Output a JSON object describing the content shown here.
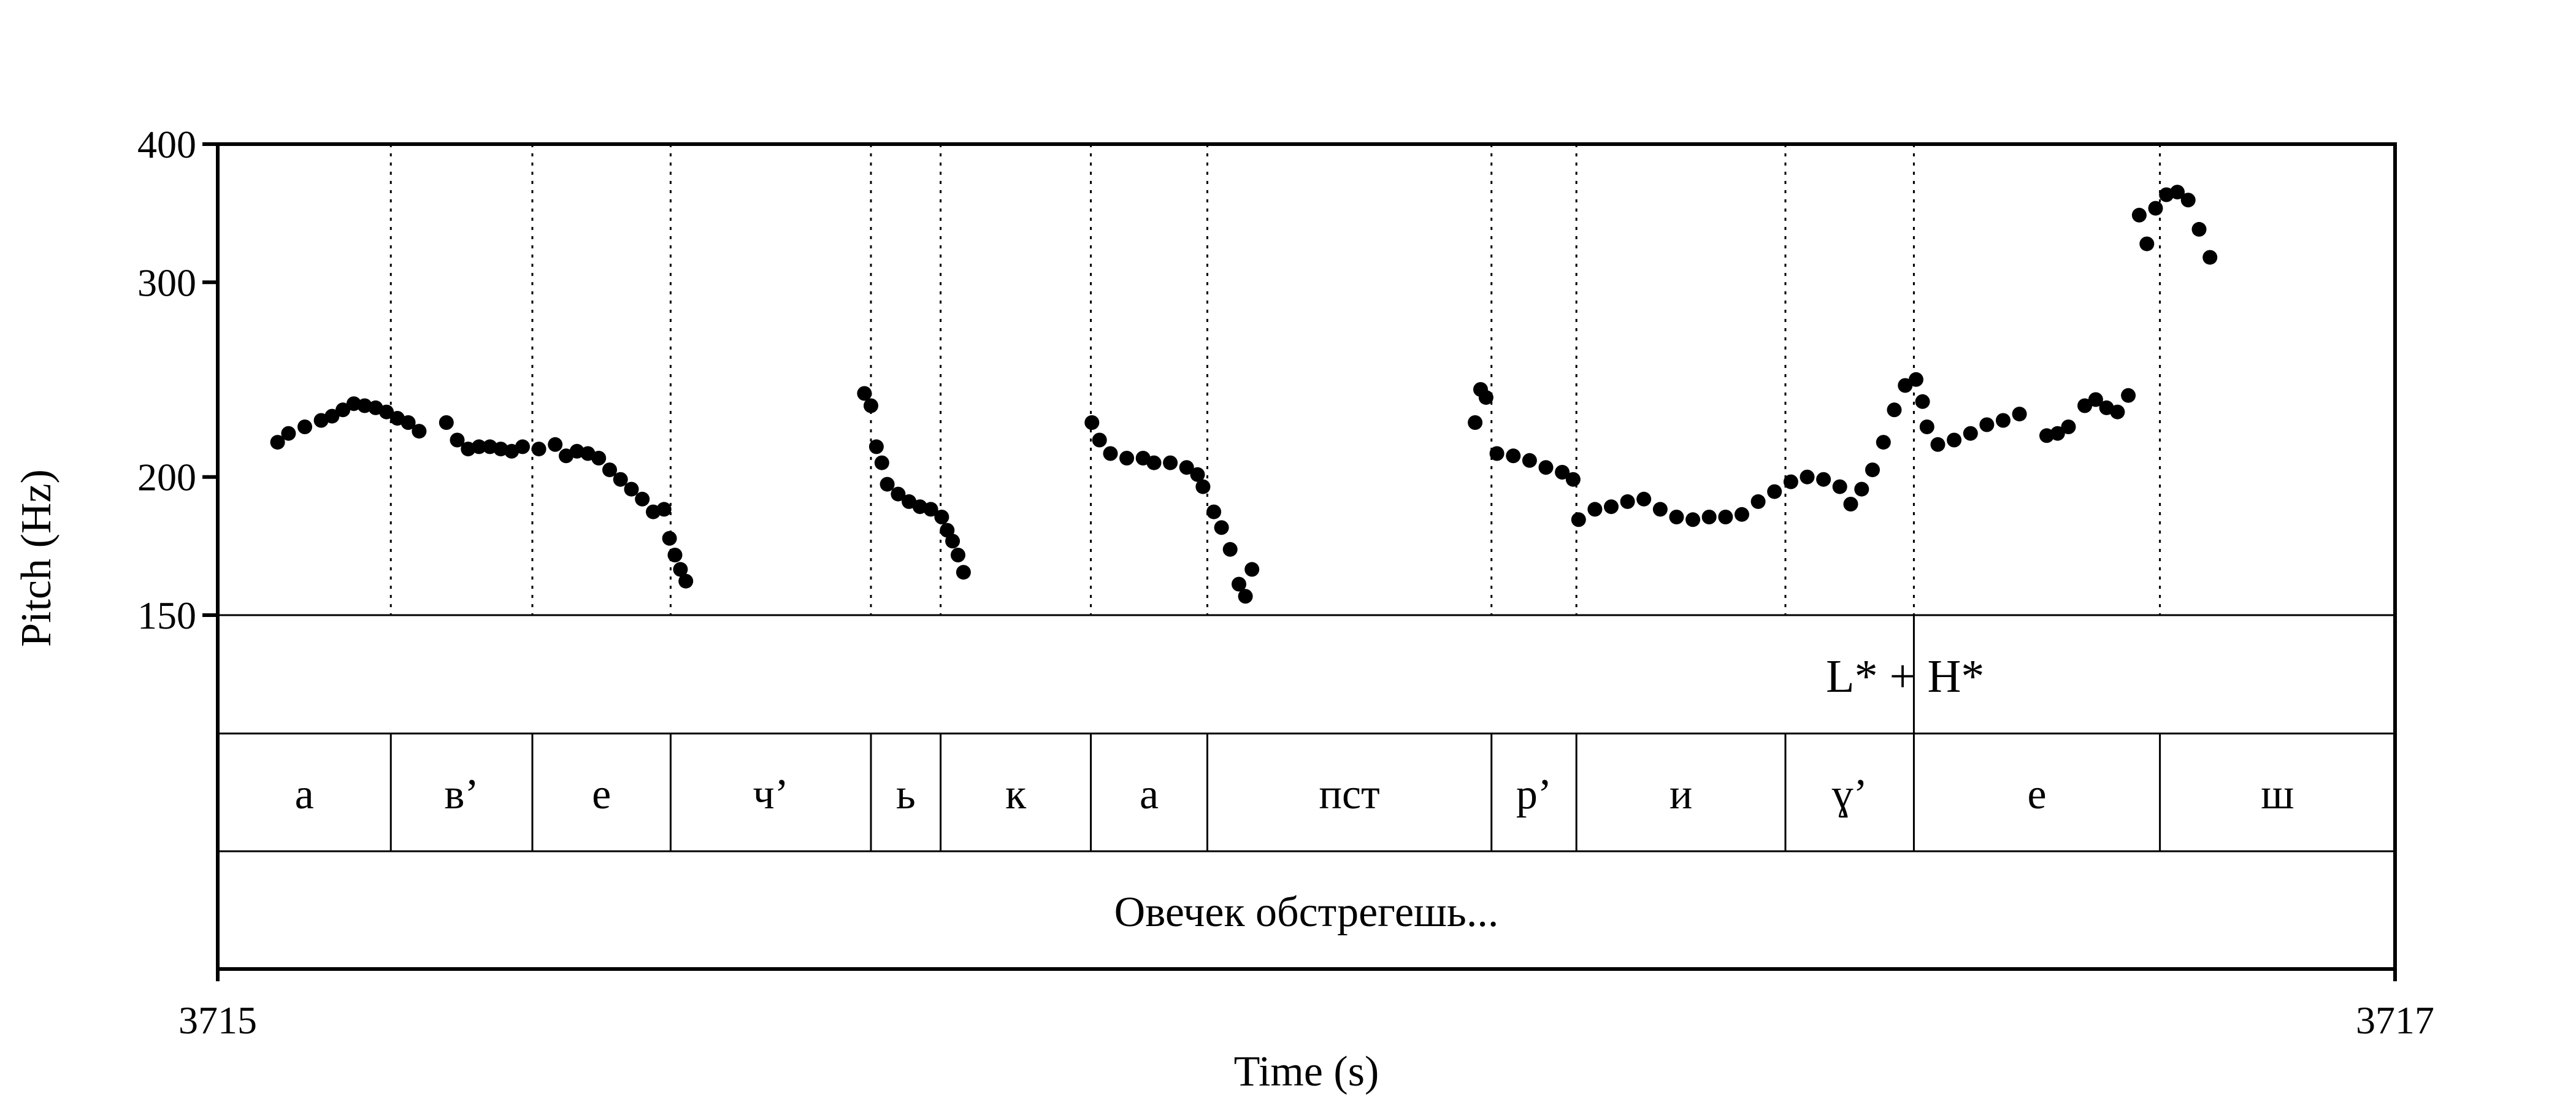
{
  "chart_data": {
    "type": "scatter",
    "xlabel": "Time (s)",
    "ylabel": "Pitch (Hz)",
    "xlim": [
      3715,
      3717
    ],
    "x_tick_labels": [
      "3715",
      "3717"
    ],
    "ylim": [
      150,
      400
    ],
    "y_scale": "log",
    "y_ticks": [
      400,
      300,
      200,
      150
    ],
    "y_tick_labels": [
      "400",
      "300",
      "200",
      "150"
    ],
    "grid": false,
    "segment_boundaries": [
      3715.159,
      3715.289,
      3715.416,
      3715.6,
      3715.664,
      3715.802,
      3715.909,
      3716.17,
      3716.248,
      3716.44,
      3716.558,
      3716.784
    ],
    "tone_tier": {
      "boundary": 3716.558,
      "label": "L* + H*",
      "label_time": 3716.55
    },
    "segments": [
      {
        "label": "a",
        "start": 3715.0,
        "end": 3715.159
      },
      {
        "label": "в’",
        "start": 3715.159,
        "end": 3715.289
      },
      {
        "label": "e",
        "start": 3715.289,
        "end": 3715.416
      },
      {
        "label": "ч’",
        "start": 3715.416,
        "end": 3715.6
      },
      {
        "label": "ь",
        "start": 3715.6,
        "end": 3715.664
      },
      {
        "label": "к",
        "start": 3715.664,
        "end": 3715.802
      },
      {
        "label": "a",
        "start": 3715.802,
        "end": 3715.909
      },
      {
        "label": "пст",
        "start": 3715.909,
        "end": 3716.17
      },
      {
        "label": "р’",
        "start": 3716.17,
        "end": 3716.248
      },
      {
        "label": "и",
        "start": 3716.248,
        "end": 3716.44
      },
      {
        "label": "ɣ’",
        "start": 3716.44,
        "end": 3716.558
      },
      {
        "label": "e",
        "start": 3716.558,
        "end": 3716.784
      },
      {
        "label": "ш",
        "start": 3716.784,
        "end": 3717.0
      }
    ],
    "utterance": {
      "label": "Овечек обстрегешь...",
      "start": 3715.0,
      "end": 3717.0
    },
    "series": [
      {
        "points": [
          [
            3715.055,
            215
          ],
          [
            3715.065,
            219
          ],
          [
            3715.08,
            222
          ],
          [
            3715.095,
            225
          ],
          [
            3715.105,
            227
          ],
          [
            3715.115,
            230
          ],
          [
            3715.125,
            233
          ],
          [
            3715.135,
            232
          ],
          [
            3715.145,
            231
          ],
          [
            3715.155,
            229
          ],
          [
            3715.165,
            226
          ],
          [
            3715.175,
            224
          ],
          [
            3715.185,
            220
          ],
          [
            3715.21,
            224
          ],
          [
            3715.22,
            216
          ],
          [
            3715.23,
            212
          ],
          [
            3715.24,
            213
          ],
          [
            3715.25,
            213
          ],
          [
            3715.26,
            212
          ],
          [
            3715.27,
            211
          ],
          [
            3715.28,
            213
          ],
          [
            3715.295,
            212
          ],
          [
            3715.31,
            214
          ],
          [
            3715.32,
            209
          ],
          [
            3715.33,
            211
          ],
          [
            3715.34,
            210
          ],
          [
            3715.35,
            208
          ],
          [
            3715.36,
            203
          ],
          [
            3715.37,
            199
          ],
          [
            3715.38,
            195
          ],
          [
            3715.39,
            191
          ],
          [
            3715.4,
            186
          ],
          [
            3715.41,
            187
          ],
          [
            3715.415,
            176
          ],
          [
            3715.42,
            170
          ],
          [
            3715.425,
            165
          ],
          [
            3715.43,
            161
          ]
        ]
      },
      {
        "points": [
          [
            3715.594,
            238
          ],
          [
            3715.6,
            232
          ],
          [
            3715.605,
            213
          ],
          [
            3715.61,
            206
          ],
          [
            3715.615,
            197
          ],
          [
            3715.625,
            193
          ],
          [
            3715.635,
            190
          ],
          [
            3715.645,
            188
          ],
          [
            3715.655,
            187
          ],
          [
            3715.665,
            184
          ],
          [
            3715.67,
            179
          ],
          [
            3715.675,
            175
          ],
          [
            3715.68,
            170
          ],
          [
            3715.685,
            164
          ]
        ]
      },
      {
        "points": [
          [
            3715.803,
            224
          ],
          [
            3715.81,
            216
          ],
          [
            3715.82,
            210
          ],
          [
            3715.835,
            208
          ],
          [
            3715.85,
            208
          ],
          [
            3715.86,
            206
          ],
          [
            3715.875,
            206
          ],
          [
            3715.89,
            204
          ],
          [
            3715.9,
            201
          ],
          [
            3715.905,
            196
          ],
          [
            3715.915,
            186
          ],
          [
            3715.922,
            180
          ],
          [
            3715.93,
            172
          ],
          [
            3715.938,
            160
          ],
          [
            3715.944,
            156
          ],
          [
            3715.95,
            165
          ]
        ]
      },
      {
        "points": [
          [
            3716.155,
            224
          ],
          [
            3716.16,
            240
          ],
          [
            3716.165,
            236
          ],
          [
            3716.175,
            210
          ],
          [
            3716.19,
            209
          ],
          [
            3716.205,
            207
          ],
          [
            3716.22,
            204
          ],
          [
            3716.235,
            202
          ],
          [
            3716.245,
            199
          ],
          [
            3716.25,
            183
          ],
          [
            3716.265,
            187
          ],
          [
            3716.28,
            188
          ],
          [
            3716.295,
            190
          ],
          [
            3716.31,
            191
          ],
          [
            3716.325,
            187
          ],
          [
            3716.34,
            184
          ],
          [
            3716.355,
            183
          ],
          [
            3716.37,
            184
          ],
          [
            3716.385,
            184
          ],
          [
            3716.4,
            185
          ],
          [
            3716.415,
            190
          ],
          [
            3716.43,
            194
          ],
          [
            3716.445,
            198
          ],
          [
            3716.46,
            200
          ],
          [
            3716.475,
            199
          ],
          [
            3716.49,
            196
          ],
          [
            3716.5,
            189
          ],
          [
            3716.51,
            195
          ],
          [
            3716.52,
            203
          ],
          [
            3716.53,
            215
          ],
          [
            3716.54,
            230
          ],
          [
            3716.55,
            242
          ],
          [
            3716.56,
            245
          ],
          [
            3716.566,
            234
          ]
        ]
      },
      {
        "points": [
          [
            3716.57,
            222
          ],
          [
            3716.58,
            214
          ],
          [
            3716.595,
            216
          ],
          [
            3716.61,
            219
          ],
          [
            3716.625,
            223
          ],
          [
            3716.64,
            225
          ],
          [
            3716.655,
            228
          ],
          [
            3716.68,
            218
          ],
          [
            3716.69,
            219
          ],
          [
            3716.7,
            222
          ],
          [
            3716.715,
            232
          ],
          [
            3716.725,
            235
          ],
          [
            3716.735,
            231
          ],
          [
            3716.745,
            229
          ],
          [
            3716.755,
            237
          ],
          [
            3716.765,
            345
          ],
          [
            3716.772,
            325
          ],
          [
            3716.78,
            350
          ],
          [
            3716.79,
            360
          ],
          [
            3716.8,
            362
          ],
          [
            3716.81,
            356
          ],
          [
            3716.82,
            335
          ],
          [
            3716.83,
            316
          ]
        ]
      }
    ]
  }
}
